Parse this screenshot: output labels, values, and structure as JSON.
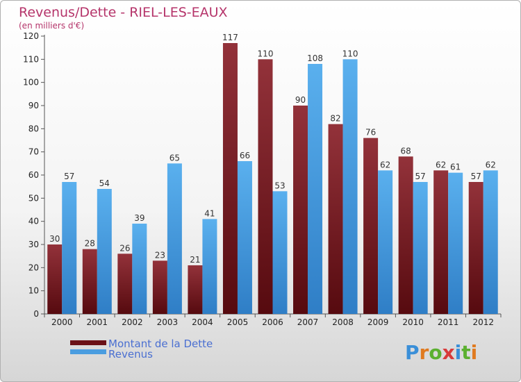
{
  "chart_data": {
    "type": "bar",
    "title": "Revenus/Dette - RIEL-LES-EAUX",
    "subtitle": "(en milliers d'€)",
    "categories": [
      "2000",
      "2001",
      "2002",
      "2003",
      "2004",
      "2005",
      "2006",
      "2007",
      "2008",
      "2009",
      "2010",
      "2011",
      "2012"
    ],
    "series": [
      {
        "name": "Montant de la Dette",
        "color": "#7a1a1f",
        "values": [
          30,
          28,
          26,
          23,
          21,
          117,
          110,
          90,
          82,
          76,
          68,
          62,
          57
        ]
      },
      {
        "name": "Revenus",
        "color": "#4a9de0",
        "values": [
          57,
          54,
          39,
          65,
          41,
          66,
          53,
          108,
          110,
          62,
          57,
          61,
          62
        ]
      }
    ],
    "ylim": [
      0,
      120
    ],
    "yticks": [
      0,
      10,
      20,
      30,
      40,
      50,
      60,
      70,
      80,
      90,
      100,
      110,
      120
    ],
    "grid": false,
    "legend": "bottom-left"
  },
  "logo": {
    "text": "Proxiti"
  }
}
